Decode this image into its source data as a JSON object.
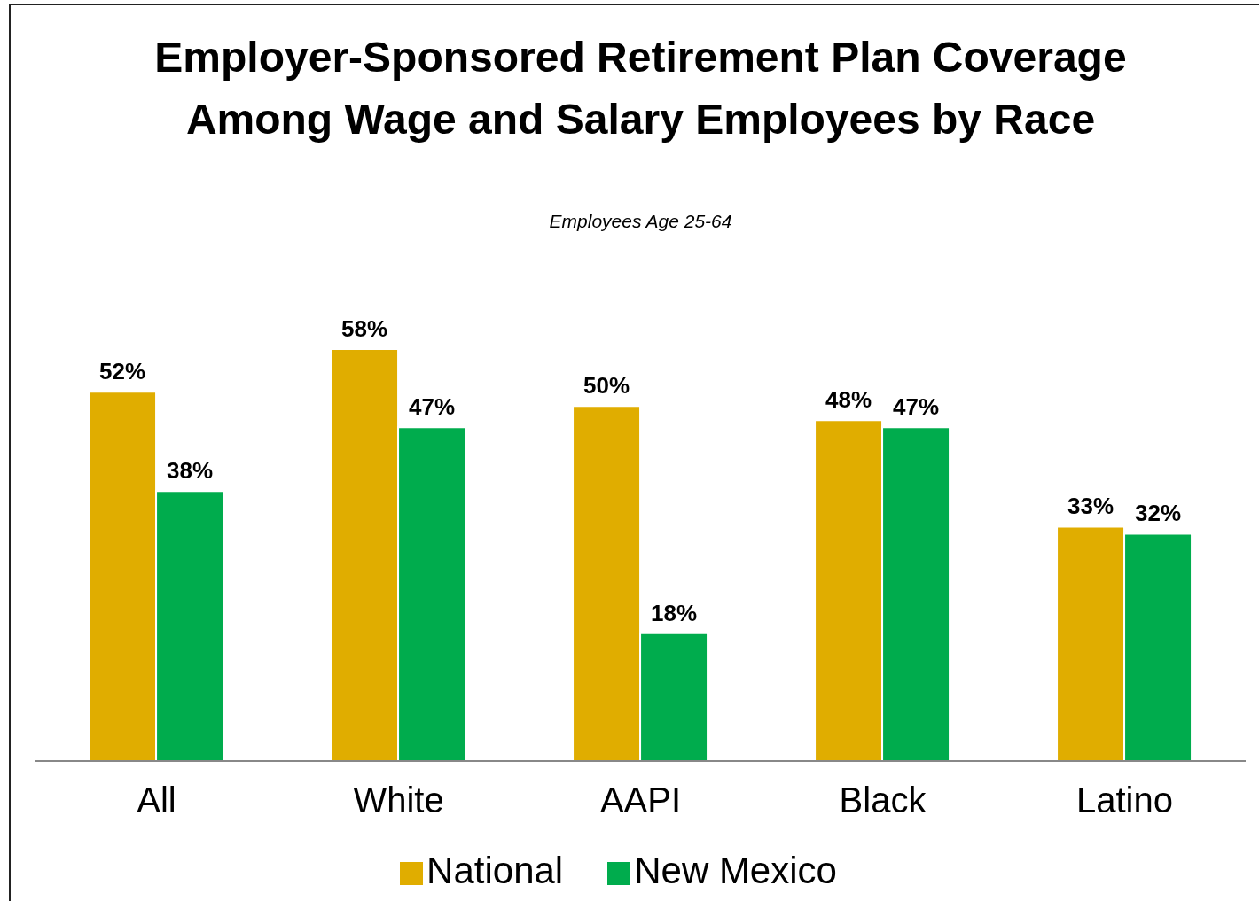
{
  "chart_data": {
    "type": "bar",
    "title": "Employer-Sponsored Retirement Plan Coverage Among Wage and Salary Employees by Race",
    "subtitle": "Employees Age 25-64",
    "categories": [
      "All",
      "White",
      "AAPI",
      "Black",
      "Latino"
    ],
    "series": [
      {
        "name": "National",
        "color": "#e0ad00",
        "values": [
          52,
          58,
          50,
          48,
          33
        ],
        "value_labels": [
          "52%",
          "58%",
          "50%",
          "48%",
          "33%"
        ]
      },
      {
        "name": "New Mexico",
        "color": "#00ac4d",
        "values": [
          38,
          47,
          18,
          47,
          32
        ],
        "value_labels": [
          "38%",
          "47%",
          "18%",
          "47%",
          "32%"
        ]
      }
    ],
    "legend": "bottom",
    "grid": false
  }
}
